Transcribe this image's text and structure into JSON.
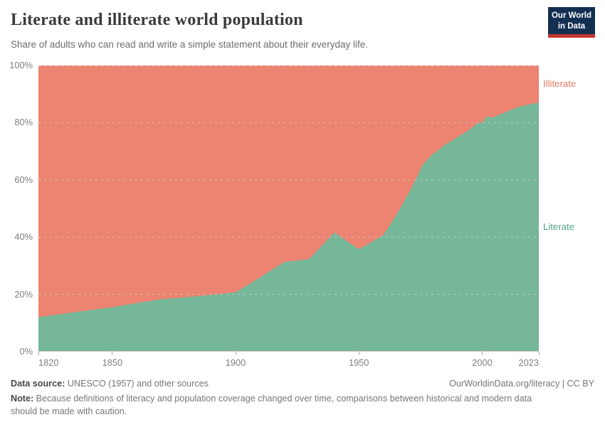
{
  "header": {
    "title": "Literate and illiterate world population",
    "subtitle": "Share of adults who can read and write a simple statement about their everyday life.",
    "logo": {
      "line1": "Our World",
      "line2": "in Data",
      "bg_color": "#132f52",
      "bar_color": "#c2392e"
    }
  },
  "chart_data": {
    "type": "area",
    "stacked": true,
    "title": "Literate and illiterate world population",
    "xlabel": "",
    "ylabel": "",
    "xlim": [
      1820,
      2023
    ],
    "ylim": [
      0,
      100
    ],
    "x_ticks": [
      1820,
      1850,
      1900,
      1950,
      2000,
      2023
    ],
    "y_ticks": [
      0,
      20,
      40,
      60,
      80,
      100
    ],
    "y_tick_suffix": "%",
    "grid": "horizontal-dashed",
    "grid_color": "#cfcfcf",
    "legend_position": "right-edge-labels",
    "x": [
      1820,
      1830,
      1840,
      1850,
      1860,
      1870,
      1880,
      1890,
      1900,
      1910,
      1920,
      1925,
      1930,
      1935,
      1940,
      1945,
      1950,
      1955,
      1960,
      1965,
      1970,
      1973,
      1976,
      1980,
      1985,
      1990,
      1995,
      1998,
      2000,
      2002,
      2004,
      2007,
      2010,
      2015,
      2020,
      2023
    ],
    "series": [
      {
        "name": "Literate",
        "color": "#76b799",
        "label_color": "#4fa485",
        "values": [
          12,
          13.2,
          14.4,
          15.5,
          17,
          18.3,
          19,
          19.8,
          20.7,
          26,
          31.4,
          31.8,
          32.4,
          37,
          41.6,
          38.7,
          35.8,
          38.2,
          40.8,
          47.5,
          55,
          60,
          65.5,
          69,
          72.3,
          75,
          77.6,
          79.8,
          80.1,
          82.3,
          81.7,
          82.8,
          83.9,
          85.6,
          86.6,
          87
        ]
      },
      {
        "name": "Illiterate",
        "color": "#ec8471",
        "label_color": "#e27a64",
        "values": [
          88,
          86.8,
          85.6,
          84.5,
          83,
          81.7,
          81,
          80.2,
          79.3,
          74,
          68.6,
          68.2,
          67.6,
          63,
          58.4,
          61.3,
          64.2,
          61.8,
          59.2,
          52.5,
          45,
          40,
          34.5,
          31,
          27.7,
          25,
          22.4,
          20.2,
          19.9,
          17.7,
          18.3,
          17.2,
          16.1,
          14.4,
          13.4,
          13
        ]
      }
    ]
  },
  "footer": {
    "source_label": "Data source:",
    "source_text": " UNESCO (1957) and other sources",
    "link_text": "OurWorldinData.org/literacy | CC BY",
    "note_label": "Note:",
    "note_text": " Because definitions of literacy and population coverage changed over time, comparisons between historical and modern data should be made with caution."
  }
}
